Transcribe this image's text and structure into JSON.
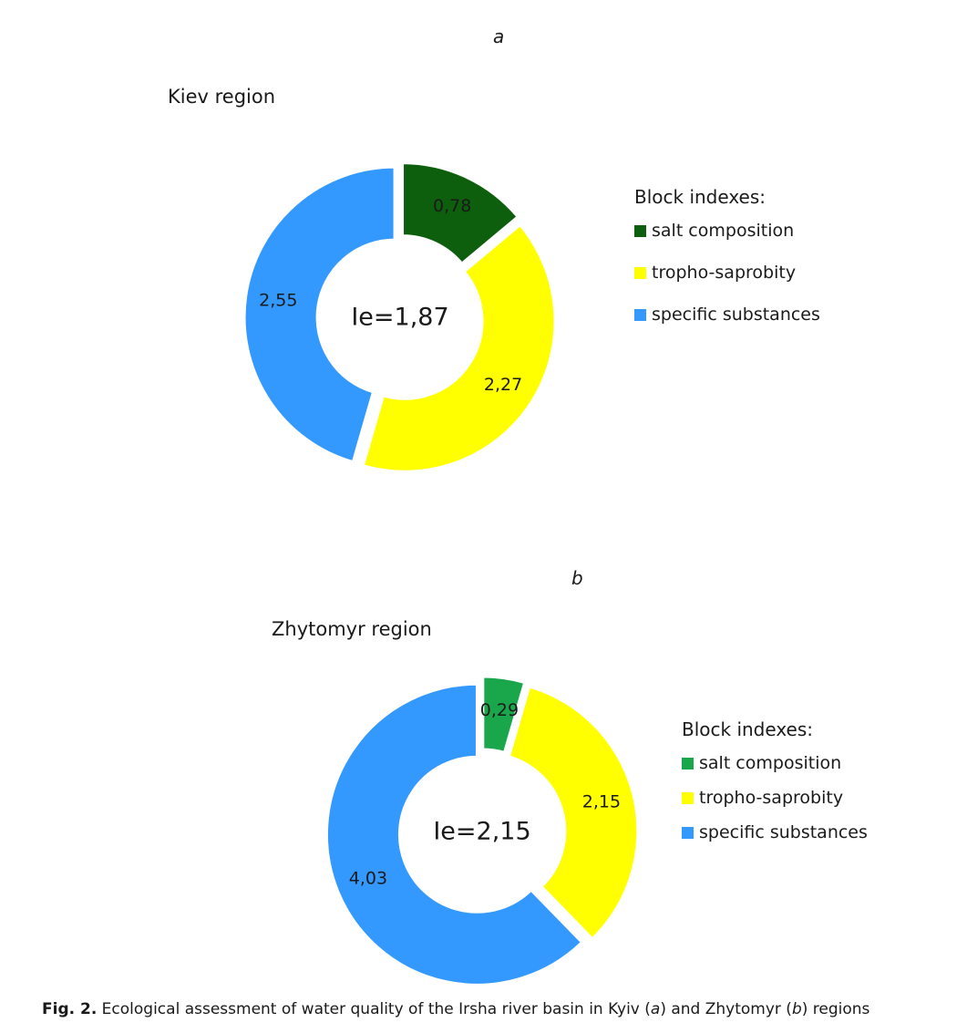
{
  "panels": [
    {
      "letter": "a",
      "region_title": "Kiev region"
    },
    {
      "letter": "b",
      "region_title": "Zhytomyr region"
    }
  ],
  "legend": {
    "title": "Block indexes:"
  },
  "caption": {
    "label": "Fig. 2.",
    "text_before_a": " Ecological assessment of water quality of the Irsha river basin in Kyiv (",
    "a": "a",
    "text_between": ") and Zhytomyr (",
    "b": "b",
    "text_after": ") regions"
  },
  "chart_data": [
    {
      "type": "pie",
      "donut": true,
      "title": "Kiev region",
      "center_label": "Ie=1,87",
      "categories": [
        "salt composition",
        "tropho-saprobity",
        "specific substances"
      ],
      "values": [
        0.78,
        2.27,
        2.55
      ],
      "value_labels": [
        "0,78",
        "2,27",
        "2,55"
      ],
      "colors": [
        "#0d5f0d",
        "#ffff00",
        "#3399ff"
      ],
      "legend_title": "Block indexes:",
      "legend_position": "right",
      "exploded": true
    },
    {
      "type": "pie",
      "donut": true,
      "title": "Zhytomyr region",
      "center_label": "Ie=2,15",
      "categories": [
        "salt composition",
        "tropho-saprobity",
        "specific substances"
      ],
      "values": [
        0.29,
        2.15,
        4.03
      ],
      "value_labels": [
        "0,29",
        "2,15",
        "4,03"
      ],
      "colors": [
        "#1aa64b",
        "#ffff00",
        "#3399ff"
      ],
      "legend_title": "Block indexes:",
      "legend_position": "right",
      "exploded": true
    }
  ]
}
